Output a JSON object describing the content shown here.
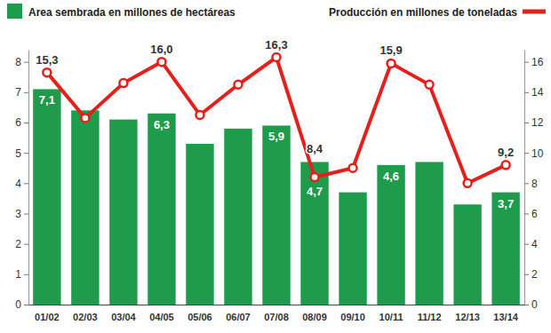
{
  "chart_data": {
    "type": "bar",
    "categories": [
      "01/02",
      "02/03",
      "03/04",
      "04/05",
      "05/06",
      "06/07",
      "07/08",
      "08/09",
      "09/10",
      "10/11",
      "11/12",
      "12/13",
      "13/14"
    ],
    "series": [
      {
        "name": "Area sembrada en millones de hectáreas",
        "type": "bar",
        "color": "#1e9b4b",
        "values": [
          7.1,
          6.4,
          6.1,
          6.3,
          5.3,
          5.8,
          5.9,
          4.7,
          3.7,
          4.6,
          4.7,
          3.3,
          3.7
        ],
        "value_labels": [
          "7,1",
          null,
          null,
          "6,3",
          null,
          null,
          "5,9",
          "4,7",
          null,
          "4,6",
          null,
          null,
          "3,7"
        ]
      },
      {
        "name": "Producción en millones de toneladas",
        "type": "line",
        "axis": "y2",
        "color": "#e3201b",
        "marker": "circle",
        "values": [
          15.3,
          12.3,
          14.6,
          16.0,
          12.5,
          14.5,
          16.3,
          8.4,
          9.0,
          15.9,
          14.5,
          8.0,
          9.2
        ],
        "value_labels": [
          "15,3",
          null,
          null,
          "16,0",
          null,
          null,
          "16,3",
          "8,4",
          null,
          "15,9",
          null,
          null,
          "9,2"
        ]
      }
    ],
    "ylim": [
      0,
      8.4
    ],
    "yticks": [
      0,
      1,
      2,
      3,
      4,
      5,
      6,
      7,
      8
    ],
    "y2lim": [
      0,
      16.8
    ],
    "y2ticks": [
      0,
      2,
      4,
      6,
      8,
      10,
      12,
      14,
      16
    ],
    "grid": false,
    "legend": "top",
    "data_labels": true
  }
}
